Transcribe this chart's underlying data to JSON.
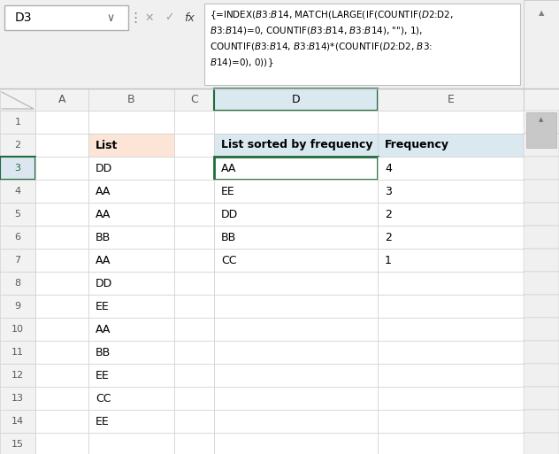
{
  "formula_bar_cell": "D3",
  "formula_lines": [
    "{=INDEX($B$3:$B$14, MATCH(LARGE(IF(COUNTIF($D$2:D2,",
    "$B$3:$B$14)=0, COUNTIF($B$3:$B$14, $B$3:$B$14), \"\"), 1),",
    "COUNTIF($B$3:$B$14, $B$3:$B$14)*(COUNTIF($D$2:D2, $B$3:",
    "$B$14)=0), 0))}"
  ],
  "col_headers": [
    "A",
    "B",
    "C",
    "D",
    "E"
  ],
  "row_numbers": [
    "1",
    "2",
    "3",
    "4",
    "5",
    "6",
    "7",
    "8",
    "9",
    "10",
    "11",
    "12",
    "13",
    "14",
    "15"
  ],
  "list_header": "List",
  "list_data": [
    "DD",
    "AA",
    "AA",
    "BB",
    "AA",
    "DD",
    "EE",
    "AA",
    "BB",
    "EE",
    "CC",
    "EE"
  ],
  "sorted_header": "List sorted by frequency",
  "sorted_data": [
    "AA",
    "EE",
    "DD",
    "BB",
    "CC"
  ],
  "freq_header": "Frequency",
  "freq_data": [
    4,
    3,
    2,
    2,
    1
  ],
  "bg_color": "#ffffff",
  "formula_bar_bg": "#f0f0f0",
  "header_bg_list": "#fce4d6",
  "header_bg_sorted": "#dae8f0",
  "cell_border_color": "#d0d0d0",
  "selected_cell_border": "#1f6b3b",
  "row_header_bg": "#f2f2f2",
  "col_header_bg": "#f2f2f2",
  "selected_col_bg": "#dae8f0",
  "text_color": "#000000",
  "col_header_text": "#595959",
  "scrollbar_bg": "#f0f0f0",
  "scrollbar_border": "#c0c0c0"
}
